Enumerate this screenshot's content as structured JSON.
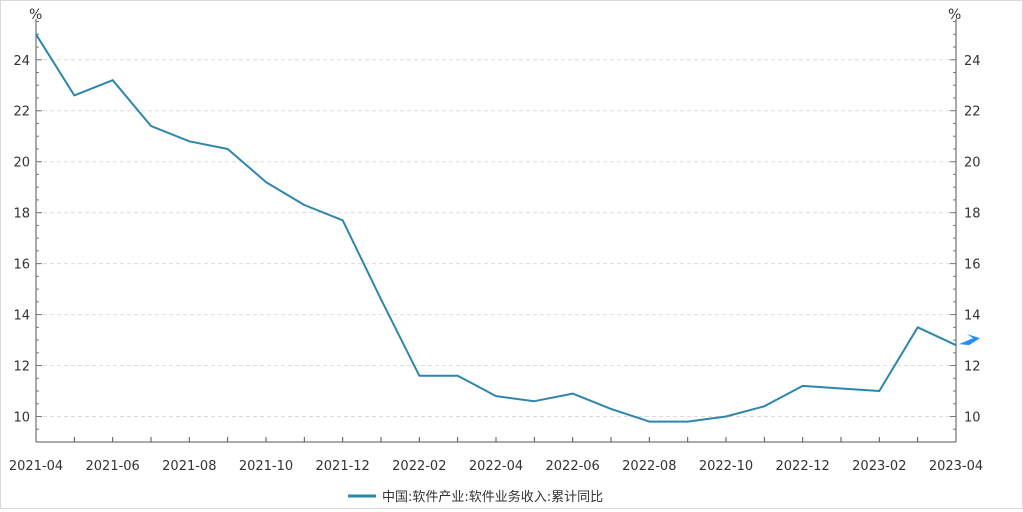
{
  "chart_data": {
    "type": "line",
    "title": "",
    "y_unit_left": "%",
    "y_unit_right": "%",
    "ylim": [
      9.0,
      25.6
    ],
    "yticks": [
      10,
      12,
      14,
      16,
      18,
      20,
      22,
      24
    ],
    "ytick_labels": [
      "10",
      "12",
      "14",
      "16",
      "18",
      "20",
      "22",
      "24"
    ],
    "x": [
      "2021-04",
      "2021-05",
      "2021-06",
      "2021-07",
      "2021-08",
      "2021-09",
      "2021-10",
      "2021-11",
      "2021-12",
      "2022-01",
      "2022-02",
      "2022-03",
      "2022-04",
      "2022-05",
      "2022-06",
      "2022-07",
      "2022-08",
      "2022-09",
      "2022-10",
      "2022-11",
      "2022-12",
      "2023-01",
      "2023-02",
      "2023-03",
      "2023-04"
    ],
    "xtick_labels": [
      "2021-04",
      "2021-06",
      "2021-08",
      "2021-10",
      "2021-12",
      "2022-02",
      "2022-04",
      "2022-06",
      "2022-08",
      "2022-10",
      "2022-12",
      "2023-02",
      "2023-04"
    ],
    "grid": true,
    "legend_position": "bottom-center",
    "series": [
      {
        "name": "中国:软件产业:软件业务收入:累计同比",
        "color": "#2e86ab",
        "values": [
          25.0,
          22.6,
          23.2,
          21.4,
          20.8,
          20.5,
          19.2,
          18.3,
          17.7,
          14.6,
          11.6,
          11.6,
          10.8,
          10.6,
          10.9,
          10.3,
          9.8,
          9.8,
          10.0,
          10.4,
          11.2,
          11.1,
          11.0,
          13.5,
          12.8
        ]
      }
    ],
    "end_marker_color": "#1e90ff"
  }
}
